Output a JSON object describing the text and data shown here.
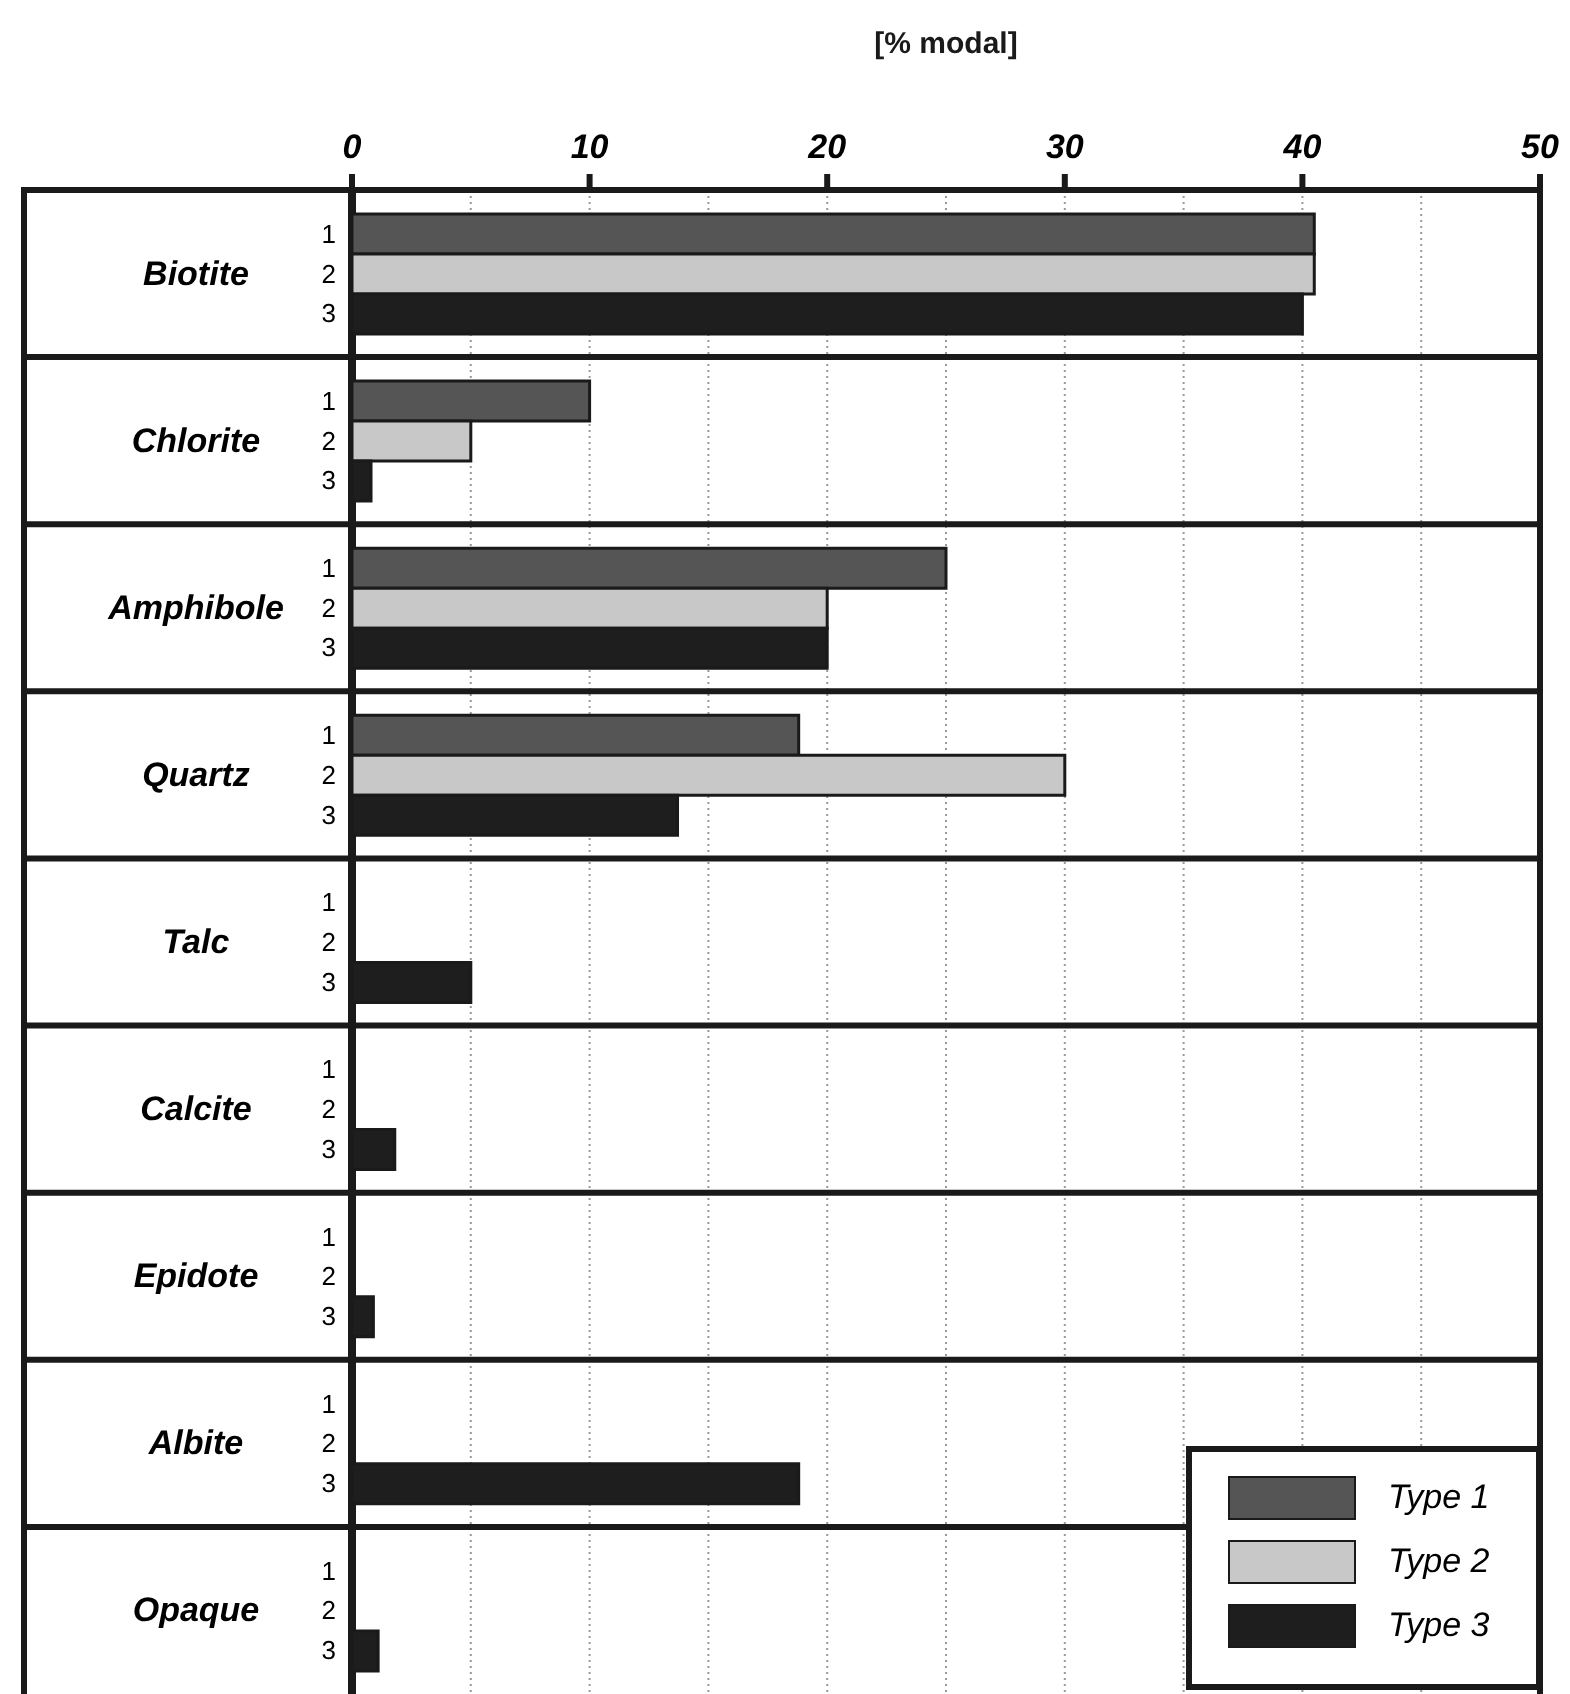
{
  "chart_data": {
    "type": "bar",
    "orientation": "horizontal",
    "xlabel": "[% modal]",
    "categories": [
      "Biotite",
      "Chlorite",
      "Amphibole",
      "Quartz",
      "Talc",
      "Calcite",
      "Epidote",
      "Albite",
      "Opaque"
    ],
    "series": [
      {
        "name": "Type 1",
        "color": "#555555",
        "values": [
          40.5,
          10,
          25,
          18.8,
          0,
          0,
          0,
          0,
          0
        ]
      },
      {
        "name": "Type 2",
        "color": "#c8c8c8",
        "values": [
          40.5,
          5,
          20,
          30,
          0,
          0,
          0,
          0,
          0
        ]
      },
      {
        "name": "Type 3",
        "color": "#1e1e1e",
        "values": [
          40,
          0.8,
          20,
          13.7,
          5,
          1.8,
          0.9,
          18.8,
          1.1
        ]
      }
    ],
    "annotations": [
      "1",
      "2",
      "3"
    ],
    "xlim": [
      0,
      50
    ],
    "xticks": [
      0,
      {
        "value": 5,
        "label": null
      },
      10,
      {
        "value": 15,
        "label": null
      },
      20,
      {
        "value": 25,
        "label": null
      },
      30,
      {
        "value": 35,
        "label": null
      },
      40,
      {
        "value": 45,
        "label": null
      },
      50
    ],
    "grid": "x",
    "legend": "bottom right"
  }
}
